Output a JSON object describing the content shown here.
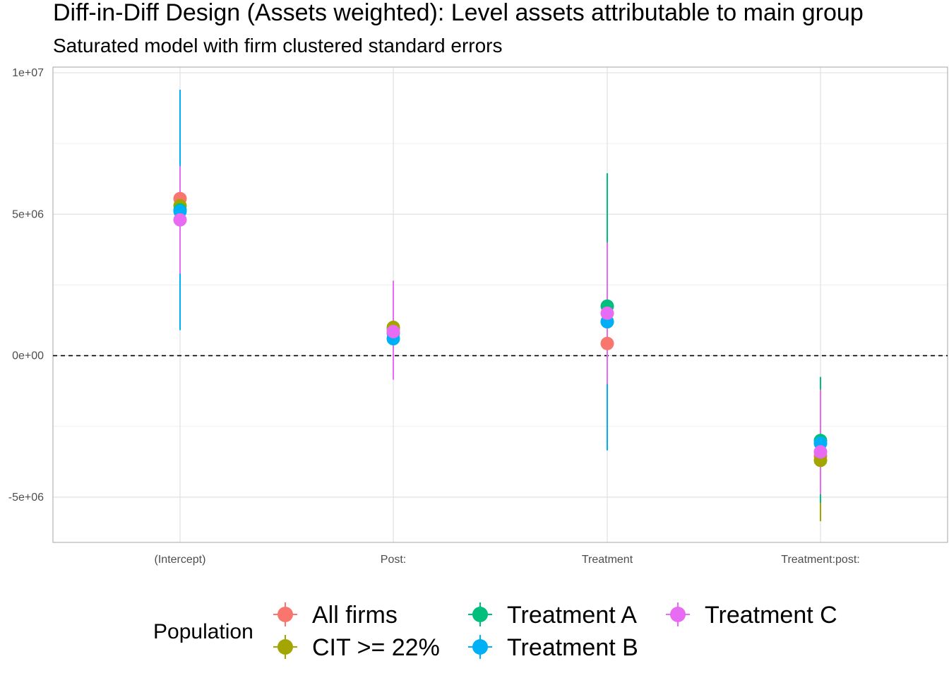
{
  "chart_data": {
    "type": "scatter",
    "title": "Diff-in-Diff Design (Assets weighted): Level assets attributable to main group",
    "subtitle": "Saturated model with firm clustered standard errors",
    "categories": [
      "(Intercept)",
      "Post:",
      "Treatment",
      "Treatment:post:"
    ],
    "ylim": [
      -6600000,
      10200000
    ],
    "y_ticks": [
      {
        "value": 10000000,
        "label": "1e+07"
      },
      {
        "value": 5000000,
        "label": "5e+06"
      },
      {
        "value": 0,
        "label": "0e+00"
      },
      {
        "value": -5000000,
        "label": "-5e+06"
      }
    ],
    "reference_line": 0,
    "grid": true,
    "legend": {
      "title": "Population",
      "position": "bottom"
    },
    "series": [
      {
        "name": "All firms",
        "color": "#F8766D",
        "points": [
          {
            "category": "(Intercept)",
            "estimate": 5550000,
            "low": 4450000,
            "high": 6650000
          },
          {
            "category": "Post:",
            "estimate": 950000,
            "low": 200000,
            "high": 1700000
          },
          {
            "category": "Treatment",
            "estimate": 430000,
            "low": -650000,
            "high": 1500000
          },
          {
            "category": "Treatment:post:",
            "estimate": -3550000,
            "low": -4800000,
            "high": -2300000
          }
        ]
      },
      {
        "name": "CIT >= 22%",
        "color": "#A3A500",
        "points": [
          {
            "category": "(Intercept)",
            "estimate": 5300000,
            "low": 4300000,
            "high": 6300000
          },
          {
            "category": "Post:",
            "estimate": 1000000,
            "low": -300000,
            "high": 2350000
          },
          {
            "category": "Treatment",
            "estimate": 1200000,
            "low": -1100000,
            "high": 3550000
          },
          {
            "category": "Treatment:post:",
            "estimate": -3700000,
            "low": -5850000,
            "high": -1500000
          }
        ]
      },
      {
        "name": "Treatment A",
        "color": "#00BF7D",
        "points": [
          {
            "category": "(Intercept)",
            "estimate": 5150000,
            "low": 3600000,
            "high": 6700000
          },
          {
            "category": "Post:",
            "estimate": 800000,
            "low": 100000,
            "high": 1500000
          },
          {
            "category": "Treatment",
            "estimate": 1750000,
            "low": -3000000,
            "high": 6450000
          },
          {
            "category": "Treatment:post:",
            "estimate": -3000000,
            "low": -5200000,
            "high": -750000
          }
        ]
      },
      {
        "name": "Treatment B",
        "color": "#00B0F6",
        "points": [
          {
            "category": "(Intercept)",
            "estimate": 5100000,
            "low": 900000,
            "high": 9400000
          },
          {
            "category": "Post:",
            "estimate": 600000,
            "low": -250000,
            "high": 1450000
          },
          {
            "category": "Treatment",
            "estimate": 1200000,
            "low": -3350000,
            "high": 4000000
          },
          {
            "category": "Treatment:post:",
            "estimate": -3100000,
            "low": -4900000,
            "high": -1300000
          }
        ]
      },
      {
        "name": "Treatment C",
        "color": "#E76BF3",
        "points": [
          {
            "category": "(Intercept)",
            "estimate": 4800000,
            "low": 2900000,
            "high": 6700000
          },
          {
            "category": "Post:",
            "estimate": 850000,
            "low": -850000,
            "high": 2650000
          },
          {
            "category": "Treatment",
            "estimate": 1500000,
            "low": -1000000,
            "high": 4000000
          },
          {
            "category": "Treatment:post:",
            "estimate": -3400000,
            "low": -4900000,
            "high": -1200000
          }
        ]
      }
    ]
  }
}
